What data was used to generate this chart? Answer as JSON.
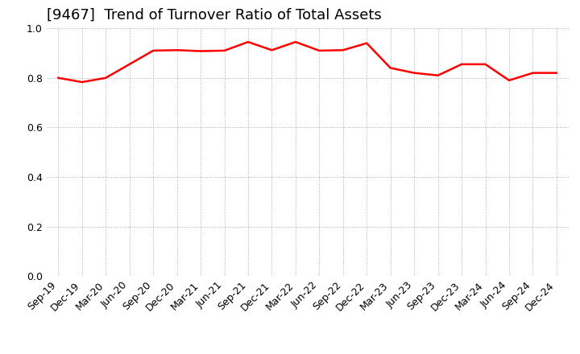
{
  "title": "[9467]  Trend of Turnover Ratio of Total Assets",
  "line_color": "#FF0000",
  "background_color": "#FFFFFF",
  "grid_color": "#AAAAAA",
  "ylim": [
    0.0,
    1.0
  ],
  "yticks": [
    0.0,
    0.2,
    0.4,
    0.6,
    0.8,
    1.0
  ],
  "labels": [
    "Sep-19",
    "Dec-19",
    "Mar-20",
    "Jun-20",
    "Sep-20",
    "Dec-20",
    "Mar-21",
    "Jun-21",
    "Sep-21",
    "Dec-21",
    "Mar-22",
    "Jun-22",
    "Sep-22",
    "Dec-22",
    "Mar-23",
    "Jun-23",
    "Sep-23",
    "Dec-23",
    "Mar-24",
    "Jun-24",
    "Sep-24",
    "Dec-24"
  ],
  "values": [
    0.8,
    0.783,
    0.8,
    0.855,
    0.91,
    0.912,
    0.908,
    0.91,
    0.945,
    0.912,
    0.945,
    0.91,
    0.912,
    0.94,
    0.84,
    0.82,
    0.81,
    0.855,
    0.855,
    0.79,
    0.82,
    0.82
  ],
  "title_fontsize": 13,
  "tick_fontsize": 9,
  "line_width": 1.8
}
